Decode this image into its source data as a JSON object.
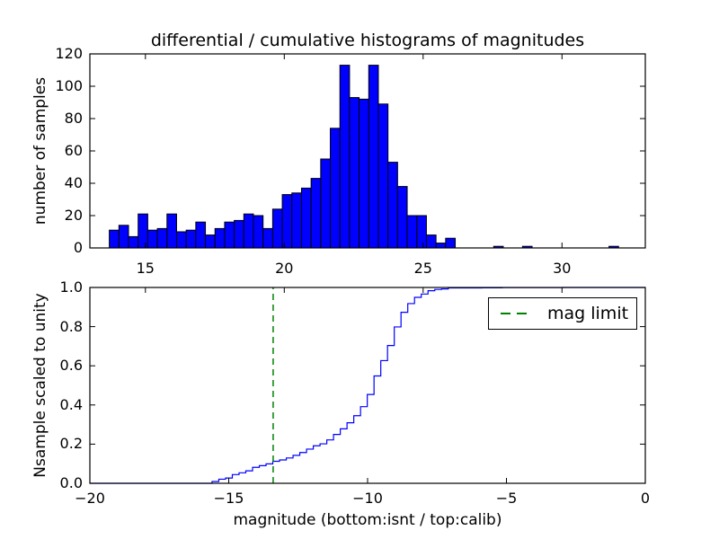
{
  "figure": {
    "background": "#ffffff",
    "spine_color": "#000000"
  },
  "chart_data": [
    {
      "type": "bar",
      "subtype": "histogram",
      "title": "differential / cumulative histograms of magnitudes",
      "xlabel": "",
      "ylabel": "number of samples",
      "xlim": [
        13,
        33
      ],
      "ylim": [
        0,
        120
      ],
      "xticks": [
        15,
        20,
        25,
        30
      ],
      "xtick_labels": [
        "15",
        "20",
        "25",
        "30"
      ],
      "yticks": [
        0,
        20,
        40,
        60,
        80,
        100,
        120
      ],
      "ytick_labels": [
        "0",
        "20",
        "40",
        "60",
        "80",
        "100",
        "120"
      ],
      "grid": false,
      "bar_color": "#0000ff",
      "bar_edge_color": "#000000",
      "bin_start": 13.7,
      "bin_width": 0.346,
      "counts": [
        11,
        14,
        7,
        21,
        11,
        12,
        21,
        10,
        11,
        16,
        8,
        12,
        16,
        17,
        21,
        20,
        12,
        24,
        33,
        34,
        37,
        43,
        55,
        74,
        113,
        93,
        92,
        113,
        89,
        53,
        38,
        20,
        20,
        8,
        3,
        6,
        0,
        0,
        0,
        0,
        1,
        0,
        0,
        1,
        0,
        0,
        0,
        0,
        0,
        0,
        0,
        0,
        1
      ]
    },
    {
      "type": "line",
      "subtype": "cumulative-step-histogram",
      "title": "",
      "xlabel": "magnitude (bottom:isnt / top:calib)",
      "ylabel": "Nsample scaled to unity",
      "xlim": [
        -20,
        0
      ],
      "ylim": [
        0.0,
        1.0
      ],
      "xticks": [
        -20,
        -15,
        -10,
        -5,
        0
      ],
      "xtick_labels": [
        "−20",
        "−15",
        "−10",
        "−5",
        "0"
      ],
      "yticks": [
        0.0,
        0.2,
        0.4,
        0.6,
        0.8,
        1.0
      ],
      "ytick_labels": [
        "0.0",
        "0.2",
        "0.4",
        "0.6",
        "0.8",
        "1.0"
      ],
      "grid": false,
      "line_color": "#0000ff",
      "normalized": true,
      "bin_start": -15.6,
      "bin_width": 0.243,
      "counts": [
        11,
        14,
        7,
        21,
        11,
        12,
        21,
        10,
        11,
        16,
        8,
        12,
        16,
        17,
        21,
        20,
        12,
        24,
        33,
        34,
        37,
        43,
        55,
        74,
        113,
        93,
        92,
        113,
        89,
        53,
        38,
        20,
        20,
        8,
        3,
        6,
        0,
        0,
        0,
        0,
        1,
        0,
        0,
        1,
        0,
        0,
        0,
        0,
        0,
        0,
        0,
        0,
        1
      ],
      "top_axis_xlim": [
        13,
        33
      ],
      "top_axis_ticks": [
        15,
        20,
        25,
        30
      ],
      "mag_limit_line": {
        "x": -13.4,
        "color": "#008000",
        "style": "dashed"
      },
      "legend": {
        "label": "mag limit",
        "position": "upper right",
        "sample_color": "#008000",
        "sample_style": "dashed"
      }
    }
  ]
}
